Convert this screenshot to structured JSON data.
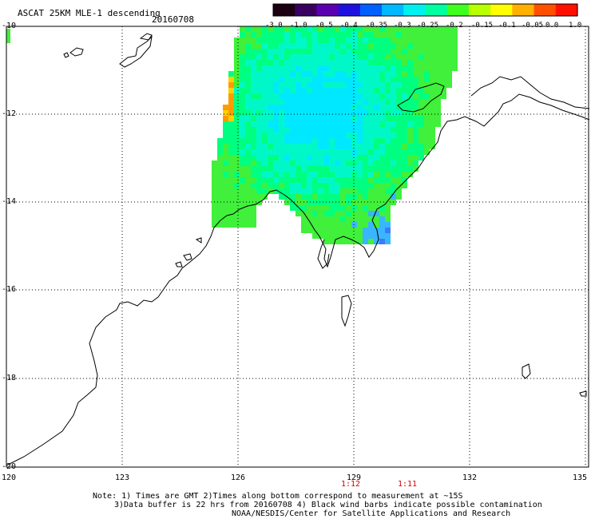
{
  "header": {
    "title": "ASCAT 25KM MLE-1 descending",
    "date": "20160708"
  },
  "colorbar": {
    "labels": [
      "-3.0",
      "-1.0",
      "-0.5",
      "-0.4",
      "-0.35",
      "-0.3",
      "-0.25",
      "-0.2",
      "-0.15",
      "-0.1",
      "-0.05",
      "0.0",
      "1.0"
    ],
    "colors": [
      "#1a0010",
      "#3a0060",
      "#5a00b0",
      "#2010e0",
      "#0060ff",
      "#00b8ff",
      "#00f0f0",
      "#00ffa0",
      "#40ff20",
      "#b8ff00",
      "#ffff00",
      "#ffb000",
      "#ff5000",
      "#ff1000"
    ]
  },
  "axes": {
    "lat_labels": [
      "-10",
      "-12",
      "-14",
      "-16",
      "-18",
      "-20"
    ],
    "lon_labels": [
      "120",
      "123",
      "126",
      "129",
      "132",
      "135"
    ]
  },
  "times": [
    "1:12",
    "1:11"
  ],
  "notes": {
    "line1": "Note: 1) Times are GMT 2)Times along bottom correspond to measurement at ~15S",
    "line2": "3)Data buffer is 22 hrs from 20160708 4) Black wind barbs indicate possible contamination",
    "line3": "NOAA/NESDIS/Center for Satellite Applications and Research"
  }
}
